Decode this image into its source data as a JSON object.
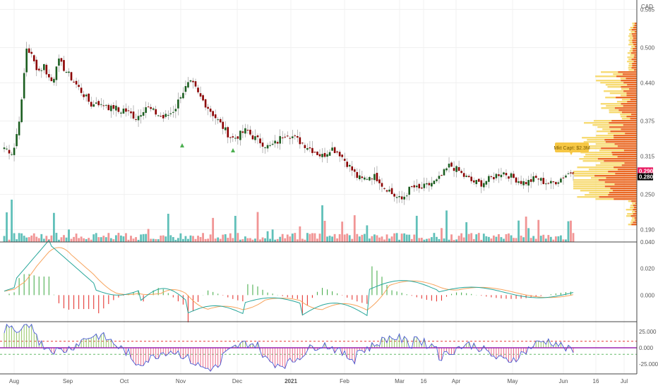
{
  "currency": "CAD",
  "chart_data": [
    {
      "type": "candlestick",
      "panel": "price",
      "yaxis_ticks": [
        "0.565",
        "0.500",
        "0.440",
        "0.375",
        "0.315",
        "0.250",
        "0.190"
      ],
      "ylim": [
        0.175,
        0.575
      ],
      "x_labels": [
        "Aug",
        "Sep",
        "Oct",
        "Nov",
        "Dec",
        "2021",
        "Feb",
        "Mar",
        "16",
        "Apr",
        "May",
        "Jun",
        "16",
        "Jul"
      ],
      "current_price_labels": [
        {
          "value": "0.290",
          "color": "#e91e63"
        },
        {
          "value": "0.280",
          "color": "#000000"
        }
      ],
      "annotation": "Mkt Capt: $2.3M",
      "colors": {
        "up": "#1b5e20",
        "down": "#8b0000",
        "vol_up": "#4fb9b1",
        "vol_down": "#f08a8a",
        "vp_up": "#f6d55c",
        "vp_down": "#e8590c"
      },
      "close_series": [
        0.33,
        0.325,
        0.32,
        0.36,
        0.41,
        0.5,
        0.49,
        0.47,
        0.46,
        0.47,
        0.45,
        0.44,
        0.48,
        0.47,
        0.46,
        0.45,
        0.44,
        0.43,
        0.42,
        0.41,
        0.4,
        0.41,
        0.4,
        0.405,
        0.395,
        0.4,
        0.39,
        0.395,
        0.39,
        0.385,
        0.38,
        0.39,
        0.4,
        0.395,
        0.39,
        0.385,
        0.38,
        0.385,
        0.39,
        0.4,
        0.42,
        0.43,
        0.44,
        0.435,
        0.42,
        0.41,
        0.4,
        0.39,
        0.38,
        0.37,
        0.36,
        0.35,
        0.345,
        0.35,
        0.355,
        0.36,
        0.35,
        0.345,
        0.34,
        0.335,
        0.33,
        0.335,
        0.34,
        0.35,
        0.355,
        0.35,
        0.345,
        0.34,
        0.335,
        0.33,
        0.325,
        0.32,
        0.315,
        0.32,
        0.33,
        0.325,
        0.32,
        0.31,
        0.3,
        0.29,
        0.28,
        0.275,
        0.278,
        0.282,
        0.28,
        0.275,
        0.262,
        0.26,
        0.25,
        0.245,
        0.24,
        0.25,
        0.26,
        0.262,
        0.258,
        0.262,
        0.265,
        0.27,
        0.272,
        0.28,
        0.29,
        0.3,
        0.295,
        0.29,
        0.282,
        0.278,
        0.272,
        0.27,
        0.268,
        0.272,
        0.276,
        0.28,
        0.285,
        0.288,
        0.284,
        0.28,
        0.276,
        0.272,
        0.27,
        0.272,
        0.276,
        0.278,
        0.272,
        0.27,
        0.268,
        0.272,
        0.276,
        0.282,
        0.286,
        0.29
      ]
    },
    {
      "type": "bar",
      "panel": "volume",
      "note": "relative volume bars at bottom of price panel"
    },
    {
      "type": "line",
      "panel": "macd",
      "yaxis_ticks": [
        "0.040",
        "0.020",
        "0.000"
      ],
      "ylim": [
        -0.02,
        0.04
      ],
      "series": [
        {
          "name": "",
          "color": "#26a69a"
        },
        {
          "name": "",
          "color": "#f7a35c"
        }
      ]
    },
    {
      "type": "line",
      "panel": "oscillator",
      "yaxis_ticks": [
        "25.000",
        "0.000",
        "-25.000"
      ],
      "ylim": [
        -40,
        40
      ],
      "upper_level": 10,
      "lower_level": -10,
      "colors": {
        "line": "#4a5bd4",
        "hist_up": "#88c057",
        "hist_down": "#e85a7a",
        "zero": "#9c27b0",
        "level": "#e53935"
      }
    }
  ]
}
